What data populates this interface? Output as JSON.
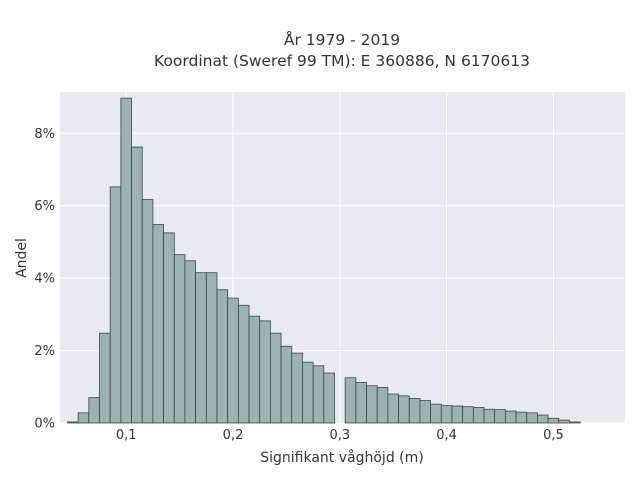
{
  "chart_data": {
    "type": "bar",
    "title_lines": [
      "År 1979 - 2019",
      "Koordinat (Sweref 99 TM): E 360886, N 6170613"
    ],
    "xlabel": "Signifikant våghöjd (m)",
    "ylabel": "Andel",
    "xlim": [
      0.038,
      0.567
    ],
    "ylim": [
      0,
      9.14
    ],
    "x_ticks": [
      {
        "value": 0.1,
        "label": "0,1"
      },
      {
        "value": 0.2,
        "label": "0,2"
      },
      {
        "value": 0.3,
        "label": "0,3"
      },
      {
        "value": 0.4,
        "label": "0,4"
      },
      {
        "value": 0.5,
        "label": "0,5"
      }
    ],
    "y_ticks": [
      {
        "value": 0,
        "label": "0%"
      },
      {
        "value": 2,
        "label": "2%"
      },
      {
        "value": 4,
        "label": "4%"
      },
      {
        "value": 6,
        "label": "6%"
      },
      {
        "value": 8,
        "label": "8%"
      }
    ],
    "grid": true,
    "bin_width": 0.01,
    "bin_starts": [
      0.045,
      0.055,
      0.065,
      0.075,
      0.085,
      0.095,
      0.105,
      0.115,
      0.125,
      0.135,
      0.145,
      0.155,
      0.165,
      0.175,
      0.185,
      0.195,
      0.205,
      0.215,
      0.225,
      0.235,
      0.245,
      0.255,
      0.265,
      0.275,
      0.285,
      0.295,
      0.305,
      0.315,
      0.325,
      0.335,
      0.345,
      0.355,
      0.365,
      0.375,
      0.385,
      0.395,
      0.405,
      0.415,
      0.425,
      0.435,
      0.445,
      0.455,
      0.465,
      0.475,
      0.485,
      0.495,
      0.505,
      0.515
    ],
    "values": [
      0.03,
      0.28,
      0.7,
      2.48,
      6.52,
      8.97,
      7.62,
      6.17,
      5.48,
      5.25,
      4.65,
      4.48,
      4.15,
      4.15,
      3.68,
      3.45,
      3.25,
      2.95,
      2.82,
      2.48,
      2.12,
      1.93,
      1.68,
      1.58,
      1.38,
      0,
      1.25,
      1.12,
      1.03,
      0.98,
      0.8,
      0.75,
      0.68,
      0.62,
      0.52,
      0.48,
      0.47,
      0.45,
      0.43,
      0.38,
      0.37,
      0.33,
      0.3,
      0.28,
      0.22,
      0.13,
      0.08,
      0.03
    ],
    "colors": {
      "bar_fill": "#9cb1b1",
      "bar_edge": "#3b4a4a",
      "plot_bg": "#e9e9f1",
      "grid": "#ffffff"
    }
  }
}
